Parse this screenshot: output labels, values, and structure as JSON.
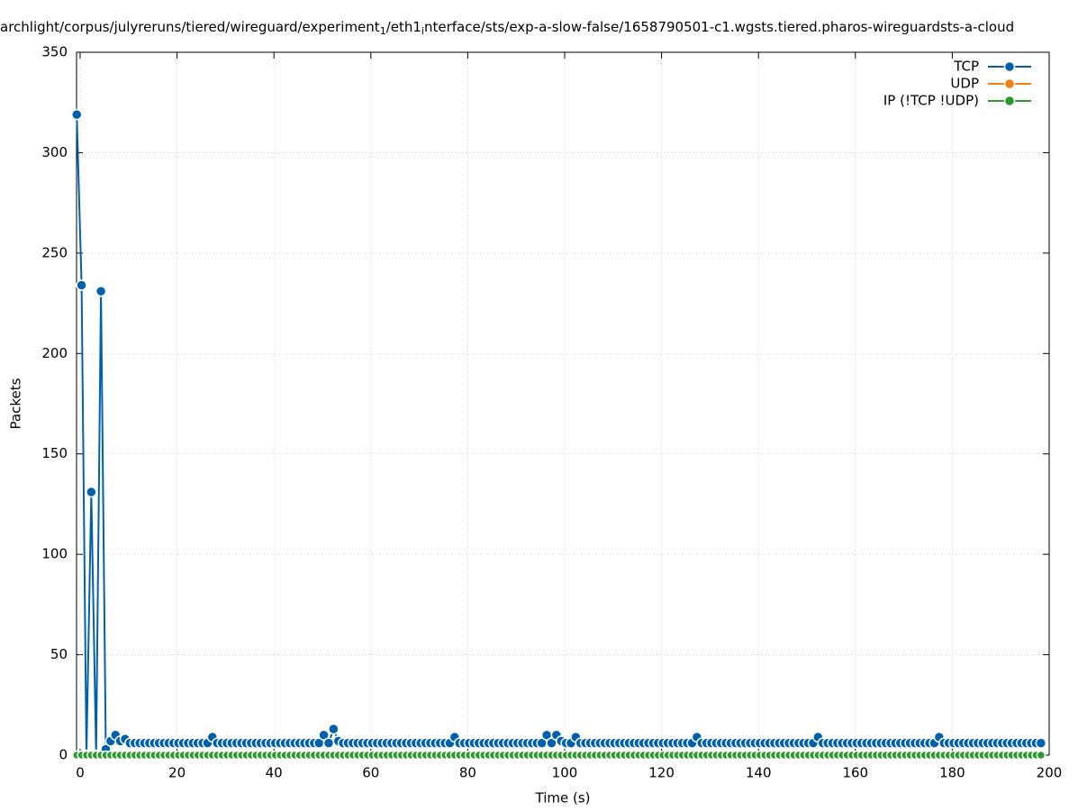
{
  "chart_data": {
    "type": "line",
    "title_parts": [
      "archlight/corpus/julyreruns/tiered/wireguard/experiment",
      "1",
      "/eth1",
      "i",
      "nterface/sts/exp-a-slow-false/1658790501-c1.wgsts.tiered.pharos-wireguardsts-a-cloud"
    ],
    "xlabel": "Time (s)",
    "ylabel": "Packets",
    "xlim": [
      -0.74,
      200
    ],
    "ylim": [
      0,
      350
    ],
    "xticks": [
      0,
      20,
      40,
      60,
      80,
      100,
      120,
      140,
      160,
      180,
      200
    ],
    "yticks": [
      0,
      50,
      100,
      150,
      200,
      250,
      300,
      350
    ],
    "grid": true,
    "legend": "top-right",
    "x": [
      -0.7,
      0.3,
      1.3,
      2.3,
      3.3,
      4.3,
      5.3,
      6.3,
      7.3,
      8.3,
      9.3,
      10.3,
      11.3,
      12.3,
      13.3,
      14.3,
      15.3,
      16.3,
      17.3,
      18.3,
      19.3,
      20.3,
      21.3,
      22.3,
      23.3,
      24.3,
      25.3,
      26.3,
      27.3,
      28.3,
      29.3,
      30.3,
      31.3,
      32.3,
      33.3,
      34.3,
      35.3,
      36.3,
      37.3,
      38.3,
      39.3,
      40.3,
      41.3,
      42.3,
      43.3,
      44.3,
      45.3,
      46.3,
      47.3,
      48.3,
      49.3,
      50.3,
      51.3,
      52.3,
      53.3,
      54.3,
      55.3,
      56.3,
      57.3,
      58.3,
      59.3,
      60.3,
      61.3,
      62.3,
      63.3,
      64.3,
      65.3,
      66.3,
      67.3,
      68.3,
      69.3,
      70.3,
      71.3,
      72.3,
      73.3,
      74.3,
      75.3,
      76.3,
      77.3,
      78.3,
      79.3,
      80.3,
      81.3,
      82.3,
      83.3,
      84.3,
      85.3,
      86.3,
      87.3,
      88.3,
      89.3,
      90.3,
      91.3,
      92.3,
      93.3,
      94.3,
      95.3,
      96.3,
      97.3,
      98.3,
      99.3,
      100.3,
      101.3,
      102.3,
      103.3,
      104.3,
      105.3,
      106.3,
      107.3,
      108.3,
      109.3,
      110.3,
      111.3,
      112.3,
      113.3,
      114.3,
      115.3,
      116.3,
      117.3,
      118.3,
      119.3,
      120.3,
      121.3,
      122.3,
      123.3,
      124.3,
      125.3,
      126.3,
      127.3,
      128.3,
      129.3,
      130.3,
      131.3,
      132.3,
      133.3,
      134.3,
      135.3,
      136.3,
      137.3,
      138.3,
      139.3,
      140.3,
      141.3,
      142.3,
      143.3,
      144.3,
      145.3,
      146.3,
      147.3,
      148.3,
      149.3,
      150.3,
      151.3,
      152.3,
      153.3,
      154.3,
      155.3,
      156.3,
      157.3,
      158.3,
      159.3,
      160.3,
      161.3,
      162.3,
      163.3,
      164.3,
      165.3,
      166.3,
      167.3,
      168.3,
      169.3,
      170.3,
      171.3,
      172.3,
      173.3,
      174.3,
      175.3,
      176.3,
      177.3,
      178.3,
      179.3,
      180.3,
      181.3,
      182.3,
      183.3,
      184.3,
      185.3,
      186.3,
      187.3,
      188.3,
      189.3,
      190.3,
      191.3,
      192.3,
      193.3,
      194.3,
      195.3,
      196.3,
      197.3,
      198.3
    ],
    "series": [
      {
        "name": "TCP",
        "color": "#0060ad",
        "values": [
          319,
          234,
          0,
          131,
          0,
          231,
          3,
          7,
          10,
          7,
          8,
          6,
          6,
          6,
          6,
          6,
          6,
          6,
          6,
          6,
          6,
          6,
          6,
          6,
          6,
          6,
          6,
          6,
          9,
          6,
          6,
          6,
          6,
          6,
          6,
          6,
          6,
          6,
          6,
          6,
          6,
          6,
          6,
          6,
          6,
          6,
          6,
          6,
          6,
          6,
          6,
          10,
          6,
          13,
          7,
          6,
          6,
          6,
          6,
          6,
          6,
          6,
          6,
          6,
          6,
          6,
          6,
          6,
          6,
          6,
          6,
          6,
          6,
          6,
          6,
          6,
          6,
          6,
          9,
          6,
          6,
          6,
          6,
          6,
          6,
          6,
          6,
          6,
          6,
          6,
          6,
          6,
          6,
          6,
          6,
          6,
          6,
          10,
          6,
          10,
          7,
          6,
          6,
          9,
          6,
          6,
          6,
          6,
          6,
          6,
          6,
          6,
          6,
          6,
          6,
          6,
          6,
          6,
          6,
          6,
          6,
          6,
          6,
          6,
          6,
          6,
          6,
          6,
          9,
          6,
          6,
          6,
          6,
          6,
          6,
          6,
          6,
          6,
          6,
          6,
          6,
          6,
          6,
          6,
          6,
          6,
          6,
          6,
          6,
          6,
          6,
          6,
          6,
          9,
          6,
          6,
          6,
          6,
          6,
          6,
          6,
          6,
          6,
          6,
          6,
          6,
          6,
          6,
          6,
          6,
          6,
          6,
          6,
          6,
          6,
          6,
          6,
          6,
          9,
          6,
          6,
          6,
          6,
          6,
          6,
          6,
          6,
          6,
          6,
          6,
          6,
          6,
          6,
          6,
          6,
          6,
          6,
          6,
          6,
          6
        ]
      },
      {
        "name": "UDP",
        "color": "#ee7f11",
        "values": [
          0,
          0,
          0,
          0,
          0,
          0,
          0,
          0,
          0,
          0,
          0,
          0,
          0,
          0,
          0,
          0,
          0,
          0,
          0,
          0,
          0,
          0,
          0,
          0,
          0,
          0,
          0,
          0,
          0,
          0,
          0,
          0,
          0,
          0,
          0,
          0,
          0,
          0,
          0,
          0,
          0,
          0,
          0,
          0,
          0,
          0,
          0,
          0,
          0,
          0,
          0,
          0,
          0,
          0,
          0,
          0,
          0,
          0,
          0,
          0,
          0,
          0,
          0,
          0,
          0,
          0,
          0,
          0,
          0,
          0,
          0,
          0,
          0,
          0,
          0,
          0,
          0,
          0,
          0,
          0,
          0,
          0,
          0,
          0,
          0,
          0,
          0,
          0,
          0,
          0,
          0,
          0,
          0,
          0,
          0,
          0,
          0,
          0,
          0,
          0,
          0,
          0,
          0,
          0,
          0,
          0,
          0,
          0,
          0,
          0,
          0,
          0,
          0,
          0,
          0,
          0,
          0,
          0,
          0,
          0,
          0,
          0,
          0,
          0,
          0,
          0,
          0,
          0,
          0,
          0,
          0,
          0,
          0,
          0,
          0,
          0,
          0,
          0,
          0,
          0,
          0,
          0,
          0,
          0,
          0,
          0,
          0,
          0,
          0,
          0,
          0,
          0,
          0,
          0,
          0,
          0,
          0,
          0,
          0,
          0,
          0,
          0,
          0,
          0,
          0,
          0,
          0,
          0,
          0,
          0,
          0,
          0,
          0,
          0,
          0,
          0,
          0,
          0,
          0,
          0,
          0,
          0,
          0,
          0,
          0,
          0,
          0,
          0,
          0,
          0,
          0,
          0,
          0,
          0,
          0,
          0,
          0,
          0,
          0,
          0
        ]
      },
      {
        "name": "IP (!TCP  !UDP)",
        "color": "#2a9a2f",
        "values": [
          0,
          0,
          0,
          0,
          0,
          0,
          0,
          0,
          0,
          0,
          0,
          0,
          0,
          0,
          0,
          0,
          0,
          0,
          0,
          0,
          0,
          0,
          0,
          0,
          0,
          0,
          0,
          0,
          0,
          0,
          0,
          0,
          0,
          0,
          0,
          0,
          0,
          0,
          0,
          0,
          0,
          0,
          0,
          0,
          0,
          0,
          0,
          0,
          0,
          0,
          0,
          0,
          0,
          0,
          0,
          0,
          0,
          0,
          0,
          0,
          0,
          0,
          0,
          0,
          0,
          0,
          0,
          0,
          0,
          0,
          0,
          0,
          0,
          0,
          0,
          0,
          0,
          0,
          0,
          0,
          0,
          0,
          0,
          0,
          0,
          0,
          0,
          0,
          0,
          0,
          0,
          0,
          0,
          0,
          0,
          0,
          0,
          0,
          0,
          0,
          0,
          0,
          0,
          0,
          0,
          0,
          0,
          0,
          0,
          0,
          0,
          0,
          0,
          0,
          0,
          0,
          0,
          0,
          0,
          0,
          0,
          0,
          0,
          0,
          0,
          0,
          0,
          0,
          0,
          0,
          0,
          0,
          0,
          0,
          0,
          0,
          0,
          0,
          0,
          0,
          0,
          0,
          0,
          0,
          0,
          0,
          0,
          0,
          0,
          0,
          0,
          0,
          0,
          0,
          0,
          0,
          0,
          0,
          0,
          0,
          0,
          0,
          0,
          0,
          0,
          0,
          0,
          0,
          0,
          0,
          0,
          0,
          0,
          0,
          0,
          0,
          0,
          0,
          0,
          0,
          0,
          0,
          0,
          0,
          0,
          0,
          0,
          0,
          0,
          0,
          0,
          0,
          0,
          0,
          0,
          0,
          0,
          0,
          0,
          0
        ]
      }
    ]
  }
}
